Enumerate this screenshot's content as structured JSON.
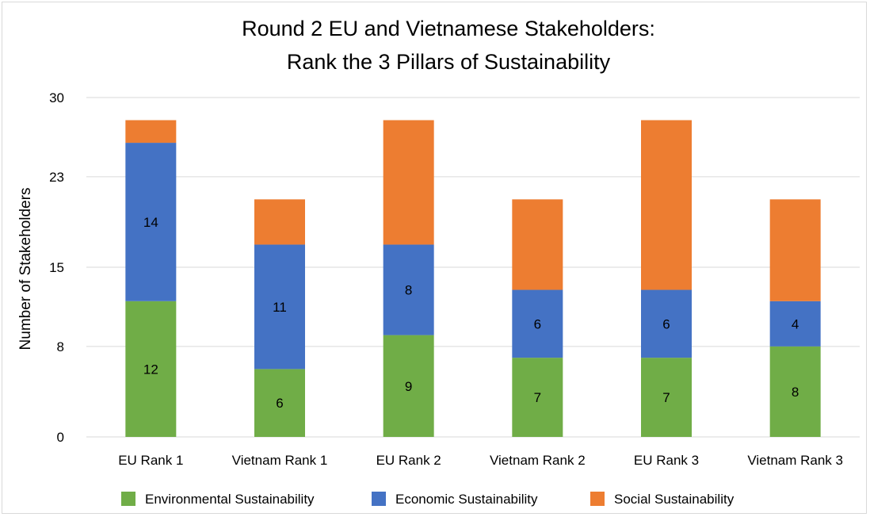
{
  "chart_data": {
    "type": "bar",
    "stacked": true,
    "title_lines": [
      "Round 2 EU and Vietnamese Stakeholders:",
      "Rank the 3 Pillars of Sustainability"
    ],
    "xlabel": "",
    "ylabel": "Number of Stakeholders",
    "ylim": [
      0,
      30
    ],
    "yticks": [
      0,
      8,
      15,
      23,
      30
    ],
    "grid": true,
    "legend_position": "bottom",
    "categories": [
      "EU Rank 1",
      "Vietnam Rank 1",
      "EU Rank 2",
      "Vietnam Rank 2",
      "EU Rank 3",
      "Vietnam Rank 3"
    ],
    "series": [
      {
        "name": "Environmental Sustainability",
        "color": "#70ad47",
        "values": [
          12,
          6,
          9,
          7,
          7,
          8
        ]
      },
      {
        "name": "Economic Sustainability",
        "color": "#4472c4",
        "values": [
          14,
          11,
          8,
          6,
          6,
          4
        ]
      },
      {
        "name": "Social Sustainability",
        "color": "#ed7d31",
        "values": [
          2,
          4,
          11,
          8,
          15,
          9
        ]
      }
    ],
    "data_labels": [
      [
        "12",
        "6",
        "9",
        "7",
        "7",
        "8"
      ],
      [
        "14",
        "11",
        "8",
        "6",
        "6",
        "4"
      ],
      [
        "",
        "",
        "",
        "",
        "",
        ""
      ]
    ]
  }
}
